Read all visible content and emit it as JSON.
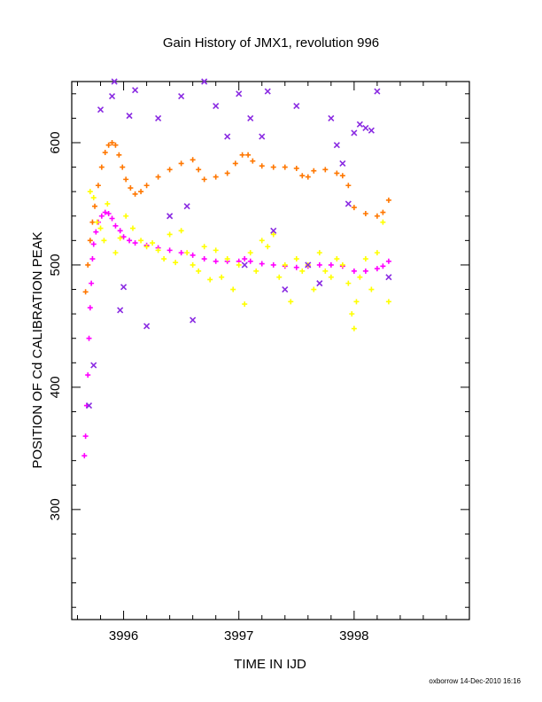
{
  "chart_data": {
    "type": "scatter",
    "title": "Gain History of JMX1, revolution 996",
    "xlabel": "TIME IN IJD",
    "ylabel": "POSITION OF Cd CALIBRATION PEAK",
    "xlim": [
      3995.55,
      3999.0
    ],
    "ylim": [
      210,
      650
    ],
    "x_ticks": [
      3996,
      3997,
      3998
    ],
    "y_ticks": [
      300,
      400,
      500,
      600
    ],
    "grid": false,
    "footer": "oxborrow 14-Dec-2010 16:16",
    "series": [
      {
        "color": "#ff7700",
        "marker": "cross",
        "x": [
          3995.67,
          3995.69,
          3995.71,
          3995.73,
          3995.75,
          3995.78,
          3995.81,
          3995.84,
          3995.87,
          3995.9,
          3995.93,
          3995.96,
          3995.99,
          3996.02,
          3996.06,
          3996.1,
          3996.15,
          3996.2,
          3996.3,
          3996.4,
          3996.5,
          3996.6,
          3996.65,
          3996.7,
          3996.8,
          3996.9,
          3996.97,
          3997.03,
          3997.08,
          3997.12,
          3997.2,
          3997.3,
          3997.4,
          3997.5,
          3997.55,
          3997.6,
          3997.65,
          3997.75,
          3997.85,
          3997.9,
          3997.95,
          3998.0,
          3998.1,
          3998.2,
          3998.25,
          3998.3
        ],
        "y": [
          478,
          500,
          520,
          535,
          548,
          565,
          580,
          592,
          598,
          600,
          598,
          590,
          580,
          570,
          563,
          558,
          560,
          565,
          572,
          578,
          583,
          586,
          578,
          570,
          572,
          575,
          583,
          590,
          590,
          585,
          581,
          580,
          580,
          579,
          573,
          572,
          577,
          578,
          575,
          573,
          565,
          547,
          542,
          540,
          543,
          553
        ]
      },
      {
        "color": "#ff00ff",
        "marker": "cross",
        "x": [
          3995.66,
          3995.67,
          3995.68,
          3995.69,
          3995.7,
          3995.71,
          3995.72,
          3995.73,
          3995.74,
          3995.76,
          3995.78,
          3995.81,
          3995.84,
          3995.87,
          3995.9,
          3995.93,
          3995.97,
          3996.0,
          3996.05,
          3996.1,
          3996.2,
          3996.3,
          3996.4,
          3996.5,
          3996.6,
          3996.7,
          3996.8,
          3996.9,
          3997.0,
          3997.05,
          3997.1,
          3997.2,
          3997.3,
          3997.4,
          3997.5,
          3997.6,
          3997.7,
          3997.8,
          3997.9,
          3998.0,
          3998.1,
          3998.2,
          3998.25,
          3998.3
        ],
        "y": [
          344,
          360,
          385,
          410,
          440,
          465,
          485,
          505,
          517,
          527,
          535,
          540,
          543,
          542,
          538,
          532,
          528,
          523,
          520,
          518,
          516,
          514,
          512,
          510,
          508,
          505,
          503,
          503,
          503,
          505,
          503,
          501,
          500,
          499,
          498,
          499,
          500,
          500,
          499,
          495,
          495,
          497,
          499,
          503
        ]
      },
      {
        "color": "#ffff00",
        "marker": "cross",
        "x": [
          3995.71,
          3995.74,
          3995.77,
          3995.8,
          3995.83,
          3995.86,
          3995.93,
          3995.97,
          3996.02,
          3996.08,
          3996.15,
          3996.2,
          3996.25,
          3996.3,
          3996.35,
          3996.4,
          3996.45,
          3996.5,
          3996.55,
          3996.6,
          3996.65,
          3996.7,
          3996.75,
          3996.8,
          3996.85,
          3996.9,
          3996.95,
          3997.0,
          3997.05,
          3997.1,
          3997.15,
          3997.2,
          3997.25,
          3997.3,
          3997.35,
          3997.4,
          3997.45,
          3997.5,
          3997.55,
          3997.6,
          3997.65,
          3997.7,
          3997.75,
          3997.8,
          3997.85,
          3997.9,
          3997.95,
          3997.98,
          3998.0,
          3998.02,
          3998.05,
          3998.1,
          3998.15,
          3998.2,
          3998.25,
          3998.3
        ],
        "y": [
          560,
          555,
          535,
          530,
          520,
          550,
          510,
          522,
          540,
          530,
          520,
          515,
          518,
          512,
          505,
          525,
          502,
          528,
          510,
          500,
          495,
          515,
          488,
          512,
          490,
          505,
          480,
          500,
          468,
          510,
          495,
          520,
          515,
          525,
          490,
          500,
          470,
          505,
          495,
          500,
          480,
          510,
          495,
          490,
          505,
          500,
          485,
          460,
          448,
          470,
          490,
          505,
          480,
          510,
          535,
          470
        ]
      },
      {
        "color": "#8a2be2",
        "marker": "x",
        "x": [
          3995.7,
          3995.74,
          3995.8,
          3995.9,
          3995.92,
          3995.97,
          3996.0,
          3996.05,
          3996.1,
          3996.2,
          3996.3,
          3996.4,
          3996.5,
          3996.55,
          3996.6,
          3996.7,
          3996.8,
          3996.9,
          3997.0,
          3997.05,
          3997.1,
          3997.2,
          3997.25,
          3997.3,
          3997.4,
          3997.5,
          3997.6,
          3997.7,
          3997.8,
          3997.85,
          3997.9,
          3997.95,
          3998.0,
          3998.05,
          3998.1,
          3998.15,
          3998.2,
          3998.3
        ],
        "y": [
          385,
          418,
          627,
          638,
          650,
          463,
          482,
          622,
          643,
          450,
          620,
          540,
          638,
          548,
          455,
          650,
          630,
          605,
          640,
          500,
          620,
          605,
          642,
          528,
          480,
          630,
          500,
          485,
          620,
          598,
          583,
          550,
          608,
          615,
          612,
          610,
          642,
          490
        ]
      }
    ]
  }
}
